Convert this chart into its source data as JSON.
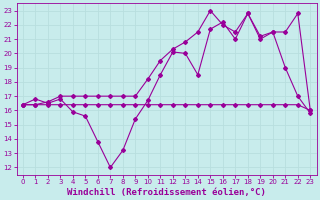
{
  "xlabel": "Windchill (Refroidissement éolien,°C)",
  "bg_color": "#c8ecec",
  "line_color": "#990099",
  "grid_color": "#b8dede",
  "spine_color": "#990099",
  "xlim": [
    -0.5,
    23.5
  ],
  "ylim": [
    11.5,
    23.5
  ],
  "xticks": [
    0,
    1,
    2,
    3,
    4,
    5,
    6,
    7,
    8,
    9,
    10,
    11,
    12,
    13,
    14,
    15,
    16,
    17,
    18,
    19,
    20,
    21,
    22,
    23
  ],
  "yticks": [
    12,
    13,
    14,
    15,
    16,
    17,
    18,
    19,
    20,
    21,
    22,
    23
  ],
  "series1_x": [
    0,
    1,
    2,
    3,
    4,
    5,
    6,
    7,
    8,
    9,
    10,
    11,
    12,
    13,
    14,
    15,
    16,
    17,
    18,
    19,
    20,
    21,
    22,
    23
  ],
  "series1_y": [
    16.4,
    16.4,
    16.4,
    16.4,
    16.4,
    16.4,
    16.4,
    16.4,
    16.4,
    16.4,
    16.4,
    16.4,
    16.4,
    16.4,
    16.4,
    16.4,
    16.4,
    16.4,
    16.4,
    16.4,
    16.4,
    16.4,
    16.4,
    16.0
  ],
  "series2_x": [
    0,
    1,
    2,
    3,
    4,
    5,
    6,
    7,
    8,
    9,
    10,
    11,
    12,
    13,
    14,
    15,
    16,
    17,
    18,
    19,
    20,
    21,
    22,
    23
  ],
  "series2_y": [
    16.4,
    16.8,
    16.5,
    16.8,
    15.9,
    15.6,
    13.8,
    12.0,
    13.2,
    15.4,
    16.7,
    18.5,
    20.1,
    20.0,
    18.5,
    21.7,
    22.2,
    21.0,
    22.8,
    21.0,
    21.5,
    19.0,
    17.0,
    15.8
  ],
  "series3_x": [
    0,
    1,
    2,
    3,
    4,
    5,
    6,
    7,
    8,
    9,
    10,
    11,
    12,
    13,
    14,
    15,
    16,
    17,
    18,
    19,
    20,
    21,
    22,
    23
  ],
  "series3_y": [
    16.4,
    16.4,
    16.6,
    17.0,
    17.0,
    17.0,
    17.0,
    17.0,
    17.0,
    17.0,
    18.2,
    19.5,
    20.3,
    20.8,
    21.5,
    23.0,
    22.0,
    21.5,
    22.8,
    21.2,
    21.5,
    21.5,
    22.8,
    16.0
  ],
  "marker": "D",
  "markersize": 2.0,
  "linewidth": 0.8,
  "xlabel_fontsize": 6.5,
  "tick_fontsize": 5.0
}
